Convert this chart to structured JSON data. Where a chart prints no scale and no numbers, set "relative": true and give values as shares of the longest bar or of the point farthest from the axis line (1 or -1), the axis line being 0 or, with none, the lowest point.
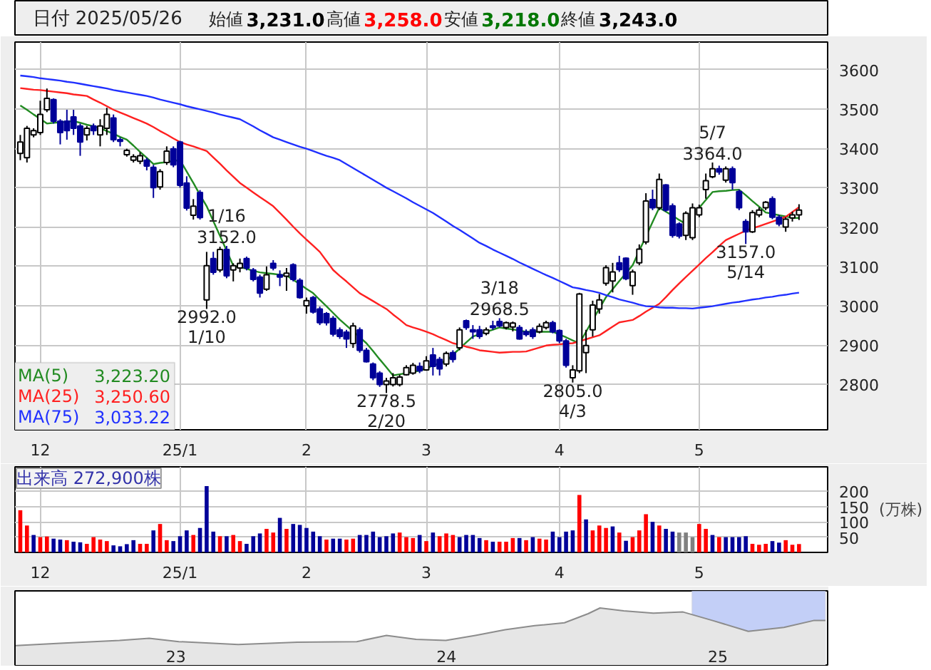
{
  "chart_data": [
    {
      "type": "candlestick",
      "title": "日付 2025/05/26",
      "categories": [
        null,
        null,
        null,
        "12",
        null,
        null,
        null,
        null,
        null,
        null,
        null,
        null,
        null,
        null,
        null,
        null,
        null,
        null,
        null,
        null,
        null,
        null,
        null,
        null,
        "25/1",
        null,
        null,
        null,
        null,
        null,
        null,
        null,
        null,
        null,
        null,
        null,
        null,
        null,
        null,
        null,
        null,
        null,
        null,
        "2",
        null,
        null,
        null,
        null,
        null,
        null,
        null,
        null,
        null,
        null,
        null,
        null,
        null,
        null,
        null,
        null,
        null,
        "3",
        null,
        null,
        null,
        null,
        null,
        null,
        null,
        null,
        null,
        null,
        null,
        null,
        null,
        null,
        null,
        null,
        null,
        null,
        null,
        "4",
        null,
        null,
        null,
        null,
        null,
        null,
        null,
        null,
        null,
        null,
        null,
        null,
        null,
        null,
        null,
        null,
        null,
        null,
        null,
        null,
        "5",
        null,
        null,
        null,
        null,
        null,
        null,
        null,
        null,
        null,
        null,
        null,
        null,
        null,
        null,
        null
      ],
      "ylim": [
        2685,
        3670
      ],
      "yticks": [
        2800,
        2900,
        3000,
        3100,
        3200,
        3300,
        3400,
        3500,
        3600
      ],
      "grid": true,
      "legend": "bottom left",
      "ohlc": [
        [
          3387,
          3434,
          3370,
          3416
        ],
        [
          3376,
          3457,
          3364,
          3451
        ],
        [
          3434,
          3451,
          3428,
          3445
        ],
        [
          3440,
          3521,
          3434,
          3486
        ],
        [
          3498,
          3552,
          3492,
          3527
        ],
        [
          3524,
          3527,
          3463,
          3469
        ],
        [
          3469,
          3474,
          3410,
          3440
        ],
        [
          3469,
          3498,
          3422,
          3445
        ],
        [
          3480,
          3498,
          3434,
          3451
        ],
        [
          3457,
          3463,
          3381,
          3416
        ],
        [
          3434,
          3457,
          3420,
          3451
        ],
        [
          3457,
          3463,
          3434,
          3445
        ],
        [
          3434,
          3474,
          3405,
          3457
        ],
        [
          3451,
          3503,
          3434,
          3486
        ],
        [
          3477,
          3486,
          3416,
          3422
        ],
        [
          3422,
          3428,
          3405,
          3418
        ],
        [
          3384,
          3399,
          3379,
          3395
        ],
        [
          3370,
          3385,
          3364,
          3379
        ],
        [
          3367,
          3390,
          3360,
          3381
        ],
        [
          3370,
          3376,
          3344,
          3355
        ],
        [
          3352,
          3358,
          3274,
          3300
        ],
        [
          3302,
          3347,
          3295,
          3341
        ],
        [
          3364,
          3405,
          3358,
          3393
        ],
        [
          3399,
          3405,
          3352,
          3358
        ],
        [
          3416,
          3419,
          3300,
          3306
        ],
        [
          3312,
          3329,
          3242,
          3248
        ],
        [
          3230,
          3271,
          3219,
          3253
        ],
        [
          3288,
          3294,
          3219,
          3224
        ],
        [
          3015,
          3137,
          2992,
          3102
        ],
        [
          3120,
          3137,
          3079,
          3085
        ],
        [
          3091,
          3150,
          3085,
          3143
        ],
        [
          3143,
          3152,
          3070,
          3076
        ],
        [
          3091,
          3108,
          3062,
          3102
        ],
        [
          3096,
          3120,
          3085,
          3108
        ],
        [
          3120,
          3125,
          3090,
          3096
        ],
        [
          3091,
          3096,
          3062,
          3067
        ],
        [
          3073,
          3079,
          3021,
          3032
        ],
        [
          3042,
          3100,
          3038,
          3079
        ],
        [
          3108,
          3116,
          3090,
          3096
        ],
        [
          3079,
          3090,
          3050,
          3073
        ],
        [
          3075,
          3096,
          3038,
          3083
        ],
        [
          3104,
          3108,
          3062,
          3067
        ],
        [
          3065,
          3070,
          3018,
          3021
        ],
        [
          3000,
          3021,
          2980,
          3013
        ],
        [
          3021,
          3025,
          2980,
          2984
        ],
        [
          2992,
          2998,
          2951,
          2957
        ],
        [
          2980,
          2984,
          2950,
          2957
        ],
        [
          2968,
          2974,
          2922,
          2928
        ],
        [
          2939,
          2945,
          2916,
          2922
        ],
        [
          2933,
          2939,
          2893,
          2916
        ],
        [
          2904,
          2957,
          2893,
          2949
        ],
        [
          2939,
          2945,
          2881,
          2887
        ],
        [
          2887,
          2893,
          2856,
          2858
        ],
        [
          2852,
          2856,
          2811,
          2817
        ],
        [
          2829,
          2834,
          2794,
          2800
        ],
        [
          2800,
          2817,
          2778.5,
          2809
        ],
        [
          2800,
          2829,
          2795,
          2817
        ],
        [
          2800,
          2825,
          2795,
          2819
        ],
        [
          2825,
          2849,
          2823,
          2843
        ],
        [
          2829,
          2855,
          2825,
          2849
        ],
        [
          2846,
          2856,
          2829,
          2835
        ],
        [
          2837,
          2872,
          2835,
          2860
        ],
        [
          2875,
          2893,
          2823,
          2846
        ],
        [
          2864,
          2870,
          2823,
          2840
        ],
        [
          2852,
          2884,
          2846,
          2879
        ],
        [
          2881,
          2887,
          2856,
          2864
        ],
        [
          2893,
          2945,
          2887,
          2939
        ],
        [
          2962,
          2965,
          2939,
          2945
        ],
        [
          2939,
          2951,
          2916,
          2934
        ],
        [
          2939,
          2949,
          2916,
          2922
        ],
        [
          2930,
          2945,
          2925,
          2939
        ],
        [
          2949,
          2962,
          2939,
          2945
        ],
        [
          2960,
          2968.5,
          2945,
          2949
        ],
        [
          2945,
          2960,
          2940,
          2957
        ],
        [
          2946,
          2960,
          2935,
          2956
        ],
        [
          2945,
          2951,
          2914,
          2916
        ],
        [
          2934,
          2940,
          2922,
          2927
        ],
        [
          2939,
          2945,
          2916,
          2922
        ],
        [
          2934,
          2955,
          2930,
          2948
        ],
        [
          2945,
          2962,
          2940,
          2957
        ],
        [
          2957,
          2962,
          2930,
          2934
        ],
        [
          2937,
          2940,
          2905,
          2911
        ],
        [
          2911,
          2916,
          2843,
          2849
        ],
        [
          2817,
          2849,
          2805,
          2837
        ],
        [
          2835,
          3033,
          2829,
          3030
        ],
        [
          2881,
          2939,
          2829,
          2899
        ],
        [
          2939,
          3013,
          2922,
          3002
        ],
        [
          2992,
          3030,
          2980,
          3015
        ],
        [
          3057,
          3103,
          3051,
          3097
        ],
        [
          3063,
          3109,
          3034,
          3086
        ],
        [
          3109,
          3127,
          3086,
          3092
        ],
        [
          3121,
          3123,
          3065,
          3069
        ],
        [
          3051,
          3092,
          3028,
          3086
        ],
        [
          3109,
          3156,
          3103,
          3144
        ],
        [
          3162,
          3286,
          3156,
          3266
        ],
        [
          3270,
          3295,
          3243,
          3249
        ],
        [
          3249,
          3336,
          3243,
          3321
        ],
        [
          3307,
          3309,
          3239,
          3243
        ],
        [
          3254,
          3260,
          3173,
          3179
        ],
        [
          3208,
          3212,
          3171,
          3177
        ],
        [
          3179,
          3240,
          3167,
          3235
        ],
        [
          3173,
          3260,
          3167,
          3249
        ],
        [
          3231,
          3257,
          3225,
          3249
        ],
        [
          3295,
          3336,
          3272,
          3318
        ],
        [
          3328,
          3364,
          3324,
          3348
        ],
        [
          3348,
          3356,
          3333,
          3340
        ],
        [
          3319,
          3354,
          3313,
          3348
        ],
        [
          3348,
          3354,
          3295,
          3313
        ],
        [
          3290,
          3295,
          3243,
          3249
        ],
        [
          3214,
          3220,
          3157,
          3188
        ],
        [
          3188,
          3243,
          3185,
          3237
        ],
        [
          3231,
          3250,
          3225,
          3243
        ],
        [
          3249,
          3266,
          3243,
          3263
        ],
        [
          3272,
          3278,
          3220,
          3225
        ],
        [
          3225,
          3231,
          3202,
          3208
        ],
        [
          3200,
          3225,
          3188,
          3220
        ],
        [
          3223,
          3239,
          3214,
          3231
        ],
        [
          3231,
          3258,
          3218,
          3243
        ]
      ],
      "colors": [
        "#ffffff",
        "#ffffff",
        "#ffffff",
        "#ffffff",
        "#ffffff",
        "#000099",
        "#000099",
        "#000099",
        "#000099",
        "#000099",
        "#ffffff",
        "#000099",
        "#ffffff",
        "#ffffff",
        "#000099",
        "#000099",
        "#ffffff",
        "#ffffff",
        "#ffffff",
        "#000099",
        "#000099",
        "#ffffff",
        "#ffffff",
        "#000099",
        "#000099",
        "#000099",
        "#ffffff",
        "#000099",
        "#ffffff",
        "#000099",
        "#ffffff",
        "#000099",
        "#ffffff",
        "#ffffff",
        "#000099",
        "#000099",
        "#000099",
        "#ffffff",
        "#000099",
        "#000099",
        "#ffffff",
        "#000099",
        "#000099",
        "#ffffff",
        "#000099",
        "#000099",
        "#000099",
        "#000099",
        "#000099",
        "#000099",
        "#ffffff",
        "#000099",
        "#000099",
        "#000099",
        "#000099",
        "#ffffff",
        "#ffffff",
        "#ffffff",
        "#ffffff",
        "#ffffff",
        "#000099",
        "#ffffff",
        "#000099",
        "#000099",
        "#ffffff",
        "#000099",
        "#ffffff",
        "#000099",
        "#000099",
        "#000099",
        "#ffffff",
        "#000099",
        "#000099",
        "#ffffff",
        "#ffffff",
        "#000099",
        "#000099",
        "#000099",
        "#ffffff",
        "#ffffff",
        "#000099",
        "#000099",
        "#000099",
        "#ffffff",
        "#ffffff",
        "#ffffff",
        "#ffffff",
        "#ffffff",
        "#ffffff",
        "#ffffff",
        "#000099",
        "#000099",
        "#ffffff",
        "#ffffff",
        "#ffffff",
        "#000099",
        "#ffffff",
        "#000099",
        "#000099",
        "#000099",
        "#ffffff",
        "#ffffff",
        "#ffffff",
        "#ffffff",
        "#ffffff",
        "#000099",
        "#ffffff",
        "#000099",
        "#000099",
        "#000099",
        "#ffffff",
        "#ffffff",
        "#ffffff",
        "#000099",
        "#000099",
        "#ffffff",
        "#ffffff",
        "#ffffff"
      ],
      "series": [
        {
          "name": "MA(5)",
          "type": "line",
          "color": "#228b22",
          "values": [
            3509,
            3498,
            3486,
            3475,
            3463,
            3465,
            3466,
            3468,
            3469,
            3465,
            3460,
            3456,
            3451,
            3444,
            3437,
            3429,
            3422,
            3407,
            3391,
            3376,
            3360,
            3363,
            3365,
            3368,
            3370,
            3341,
            3312,
            3282,
            3253,
            3215,
            3178,
            3140,
            3102,
            3098,
            3094,
            3089,
            3085,
            3083,
            3081,
            3079,
            3077,
            3066,
            3055,
            3043,
            3032,
            3015,
            2999,
            2982,
            2965,
            2950,
            2935,
            2920,
            2905,
            2885,
            2864,
            2844,
            2823,
            2826,
            2829,
            2832,
            2835,
            2841,
            2848,
            2854,
            2860,
            2876,
            2891,
            2907,
            2922,
            2928,
            2934,
            2939,
            2945,
            2942,
            2940,
            2937,
            2934,
            2934,
            2934,
            2934,
            2934,
            2927,
            2920,
            2912,
            2905,
            2934,
            2964,
            2993,
            3022,
            3042,
            3063,
            3083,
            3103,
            3140,
            3176,
            3213,
            3249,
            3239,
            3229,
            3218,
            3208,
            null,
            3249,
            3269,
            3289,
            3291,
            3292,
            3294,
            3295,
            3281,
            3266,
            3252,
            3237,
            3234,
            3230,
            3227,
            3223,
            3223.2
          ]
        },
        {
          "name": "MA(25)",
          "type": "line",
          "color": "#ff2020",
          "values": [
            3553,
            3551,
            3549,
            3548,
            3546,
            3544,
            3542,
            3540,
            3537,
            3535,
            3533,
            3524,
            3516,
            3507,
            3498,
            3491,
            3484,
            3477,
            3470,
            3463,
            3454,
            3444,
            3435,
            3425,
            3416,
            3410,
            3405,
            3399,
            3393,
            3377,
            3361,
            3344,
            3328,
            3312,
            3300,
            3288,
            3276,
            3265,
            3253,
            3236,
            3219,
            3201,
            3184,
            3168,
            3153,
            3137,
            3114,
            3091,
            3076,
            3062,
            3047,
            3032,
            3022,
            3012,
            3002,
            2992,
            2978,
            2965,
            2951,
            2945,
            2940,
            2934,
            2928,
            2920,
            2913,
            2905,
            2901,
            2896,
            2892,
            2887,
            2885,
            2883,
            2881,
            2882,
            2883,
            2883,
            2884,
            2889,
            2894,
            2899,
            2901,
            2902,
            2904,
            2905,
            2910,
            2915,
            2920,
            2925,
            2936,
            2947,
            2958,
            2961,
            2964,
            2974,
            2985,
            2995,
            3005,
            3022,
            3040,
            3057,
            3073,
            3089,
            3105,
            3121,
            3136,
            3152,
            3167,
            3175,
            3183,
            3191,
            3197,
            3202,
            3208,
            3214,
            3220,
            3226,
            3238,
            3250.6
          ]
        },
        {
          "name": "MA(75)",
          "type": "line",
          "color": "#2030ff",
          "values": [
            3585,
            3583,
            3581,
            3578,
            3576,
            3574,
            3572,
            3569,
            3567,
            3564,
            3561,
            3558,
            3555,
            3552,
            3548,
            3545,
            3542,
            3539,
            3536,
            3533,
            3529,
            3524,
            3520,
            3516,
            3512,
            3507,
            3503,
            3499,
            3495,
            3491,
            3486,
            3482,
            3478,
            3474,
            3465,
            3456,
            3446,
            3437,
            3428,
            3422,
            3416,
            3410,
            3404,
            3399,
            3393,
            3387,
            3381,
            3376,
            3370,
            3360,
            3350,
            3340,
            3330,
            3320,
            3310,
            3300,
            3291,
            3282,
            3273,
            3263,
            3254,
            3245,
            3236,
            3225,
            3214,
            3203,
            3193,
            3182,
            3171,
            3160,
            3152,
            3143,
            3135,
            3127,
            3119,
            3110,
            3102,
            3094,
            3086,
            3078,
            3071,
            3063,
            3055,
            3047,
            3044,
            3040,
            3037,
            3033,
            3027,
            3022,
            3016,
            3012,
            3008,
            3003,
            2999,
            2998,
            2996,
            2995,
            2995,
            2994,
            2994,
            2993,
            2995,
            2997,
            2999,
            3002,
            3005,
            3008,
            3010,
            3013,
            3016,
            3018,
            3021,
            3023,
            3026,
            3028,
            3031,
            3033.22
          ]
        }
      ],
      "annotations": [
        "始値 3,231.0",
        "高値 3,258.0",
        "安値 3,218.0",
        "終値 3,243.0",
        "3,223.20",
        "3,250.60",
        "3,033.22",
        {
          "text": "1/16",
          "y": 3152
        },
        {
          "text": "3152.0",
          "y": 3152
        },
        {
          "text": "2992.0",
          "y": 2992
        },
        {
          "text": "1/10",
          "y": 2992
        },
        {
          "text": "2778.5",
          "y": 2778.5
        },
        {
          "text": "2/20",
          "y": 2778.5
        },
        {
          "text": "3/18",
          "y": 2968.5
        },
        {
          "text": "2968.5",
          "y": 2968.5
        },
        {
          "text": "2805.0",
          "y": 2805
        },
        {
          "text": "4/3",
          "y": 2805
        },
        {
          "text": "5/7",
          "y": 3364
        },
        {
          "text": "3364.0",
          "y": 3364
        },
        {
          "text": "3157.0",
          "y": 3157
        },
        {
          "text": "5/14",
          "y": 3157
        }
      ]
    },
    {
      "type": "bar",
      "title": "出来高 272,900株",
      "ylabel": "(万株)",
      "categories": [
        null,
        null,
        null,
        "12",
        null,
        null,
        null,
        null,
        null,
        null,
        null,
        null,
        null,
        null,
        null,
        null,
        null,
        null,
        null,
        null,
        null,
        null,
        null,
        null,
        "25/1",
        null,
        null,
        null,
        null,
        null,
        null,
        null,
        null,
        null,
        null,
        null,
        null,
        null,
        null,
        null,
        null,
        null,
        null,
        "2",
        null,
        null,
        null,
        null,
        null,
        null,
        null,
        null,
        null,
        null,
        null,
        null,
        null,
        null,
        null,
        null,
        null,
        "3",
        null,
        null,
        null,
        null,
        null,
        null,
        null,
        null,
        null,
        null,
        null,
        null,
        null,
        null,
        null,
        null,
        null,
        null,
        null,
        "4",
        null,
        null,
        null,
        null,
        null,
        null,
        null,
        null,
        null,
        null,
        null,
        null,
        null,
        null,
        null,
        null,
        null,
        null,
        null,
        null,
        "5",
        null,
        null,
        null,
        null,
        null,
        null,
        null,
        null,
        null,
        null,
        null,
        null,
        null,
        null,
        null
      ],
      "ylim": [
        0,
        280
      ],
      "yticks": [
        50,
        100,
        150,
        200
      ],
      "grid": true,
      "values": [
        138,
        88,
        57,
        50,
        52,
        45,
        42,
        40,
        35,
        33,
        28,
        50,
        42,
        37,
        23,
        20,
        27,
        40,
        28,
        28,
        72,
        93,
        40,
        37,
        53,
        72,
        57,
        80,
        217,
        68,
        53,
        53,
        57,
        37,
        28,
        53,
        62,
        77,
        65,
        113,
        77,
        93,
        90,
        80,
        68,
        53,
        42,
        45,
        45,
        42,
        45,
        57,
        57,
        68,
        50,
        53,
        62,
        65,
        50,
        47,
        57,
        37,
        65,
        53,
        62,
        57,
        50,
        57,
        57,
        47,
        40,
        35,
        35,
        35,
        47,
        47,
        40,
        50,
        45,
        42,
        68,
        50,
        68,
        72,
        188,
        108,
        72,
        88,
        80,
        85,
        65,
        38,
        50,
        72,
        125,
        100,
        88,
        77,
        68,
        65,
        65,
        50,
        93,
        77,
        57,
        50,
        50,
        50,
        50,
        53,
        28,
        25,
        28,
        37,
        32,
        40,
        25,
        27.29
      ],
      "colors": [
        "#ff0000",
        "#ff0000",
        "#000099",
        "#ff0000",
        "#ff0000",
        "#000099",
        "#000099",
        "#ff0000",
        "#000099",
        "#000099",
        "#ff0000",
        "#ff0000",
        "#ff0000",
        "#ff0000",
        "#000099",
        "#000099",
        "#000099",
        "#000099",
        "#ff0000",
        "#ff0000",
        "#000099",
        "#ff0000",
        "#ff0000",
        "#000099",
        "#000099",
        "#000099",
        "#ff0000",
        "#000099",
        "#000099",
        "#000099",
        "#ff0000",
        "#000099",
        "#ff0000",
        "#ff0000",
        "#000099",
        "#000099",
        "#000099",
        "#ff0000",
        "#ff0000",
        "#000099",
        "#ff0000",
        "#000099",
        "#000099",
        "#000099",
        "#000099",
        "#000099",
        "#ff0000",
        "#000099",
        "#000099",
        "#ff0000",
        "#ff0000",
        "#000099",
        "#000099",
        "#000099",
        "#000099",
        "#000099",
        "#000099",
        "#ff0000",
        "#ff0000",
        "#ff0000",
        "#000099",
        "#ff0000",
        "#000099",
        "#ff0000",
        "#ff0000",
        "#ff0000",
        "#000099",
        "#000099",
        "#000099",
        "#000099",
        "#ff0000",
        "#000099",
        "#ff0000",
        "#ff0000",
        "#ff0000",
        "#000099",
        "#ff0000",
        "#000099",
        "#ff0000",
        "#ff0000",
        "#000099",
        "#000099",
        "#000099",
        "#000099",
        "#ff0000",
        "#000099",
        "#ff0000",
        "#ff0000",
        "#ff0000",
        "#000099",
        "#ff0000",
        "#000099",
        "#ff0000",
        "#ff0000",
        "#ff0000",
        "#000099",
        "#ff0000",
        "#000099",
        "#000099",
        "#808080",
        "#808080",
        "#808080",
        "#ff0000",
        "#ff0000",
        "#000099",
        "#ff0000",
        "#000099",
        "#000099",
        "#000099",
        "#000099",
        "#ff0000",
        "#ff0000",
        "#ff0000",
        "#000099",
        "#000099",
        "#ff0000",
        "#ff0000",
        "#ff0000"
      ]
    },
    {
      "type": "area",
      "relative": true,
      "color": "#8c8c8c",
      "x": [
        "2022-05-30",
        "2022-07-29",
        "2022-10-17",
        "2022-11-26",
        "2023-01-05",
        "2023-03-26",
        "2023-06-14",
        "2023-09-02",
        "2023-10-12",
        "2023-11-21",
        "2023-12-31",
        "2024-02-09",
        "2024-03-20",
        "2024-04-29",
        "2024-06-08",
        "2024-07-10",
        "2024-07-26",
        "2024-08-27",
        "2024-10-06",
        "2024-11-15",
        "2024-12-25",
        "2025-02-11",
        "2025-03-31",
        "2025-05-10",
        "2025-05-26"
      ],
      "values": [
        0.34,
        0.38,
        0.43,
        0.47,
        0.41,
        0.36,
        0.4,
        0.41,
        0.52,
        0.45,
        0.43,
        0.52,
        0.62,
        0.69,
        0.74,
        0.9,
        1.0,
        0.95,
        0.91,
        0.93,
        0.78,
        0.59,
        0.66,
        0.78,
        0.78
      ],
      "xlim": [
        "2022-05-29",
        "2025-05-29"
      ],
      "xticks": [
        {
          "value": "2023-01-01",
          "label": "23"
        },
        {
          "value": "2024-01-01",
          "label": "24"
        },
        {
          "value": "2025-01-01",
          "label": "25"
        }
      ],
      "bands": [
        {
          "axis": "x",
          "from": "2024-11-27",
          "to": "2025-05-26",
          "color": "#b4c3f5"
        }
      ]
    }
  ]
}
